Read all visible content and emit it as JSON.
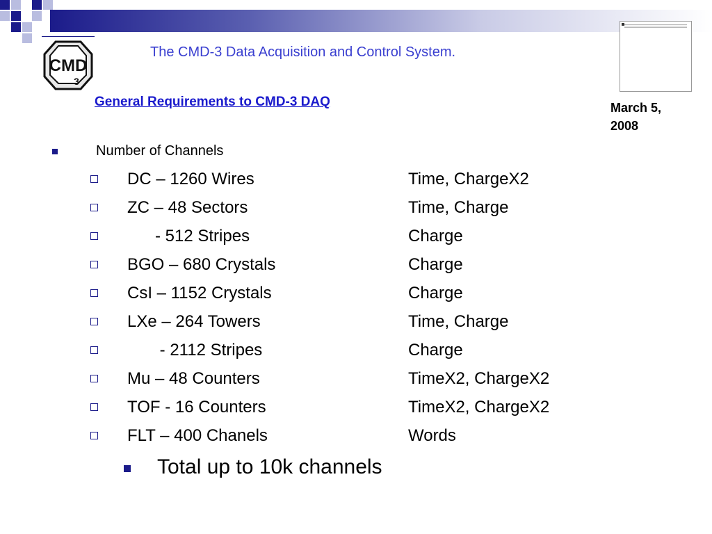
{
  "header": {
    "title": "The CMD-3 Data Acquisition and Control System."
  },
  "logo": {
    "text": "CMD-3"
  },
  "slide": {
    "subtitle": "General Requirements to CMD-3 DAQ",
    "date": "March 5, 2008",
    "section_label": "Number of Channels",
    "rows": [
      {
        "name": "DC – 1260 Wires",
        "kind": "Time, ChargeX2"
      },
      {
        "name": "ZC – 48 Sectors",
        "kind": "Time, Charge"
      },
      {
        "name": "      - 512 Stripes",
        "kind": "Charge"
      },
      {
        "name": "BGO – 680 Crystals",
        "kind": "Charge"
      },
      {
        "name": "CsI – 1152 Crystals",
        "kind": "Charge"
      },
      {
        "name": "LXe – 264 Towers",
        "kind": "Time, Charge"
      },
      {
        "name": "       - 2112 Stripes",
        "kind": "Charge"
      },
      {
        "name": "Mu – 48 Counters",
        "kind": "TimeX2, ChargeX2"
      },
      {
        "name": "TOF - 16 Counters",
        "kind": "TimeX2, ChargeX2"
      },
      {
        "name": "FLT – 400 Chanels",
        "kind": "Words"
      }
    ],
    "total": "Total up to 10k channels"
  },
  "colors": {
    "accent": "#1b1b8a",
    "title": "#3a3fd0",
    "subtitle": "#1a1acc"
  },
  "icons": {
    "section_bullet": "square-bullet-icon",
    "row_bullet": "hollow-square-bullet-icon"
  }
}
